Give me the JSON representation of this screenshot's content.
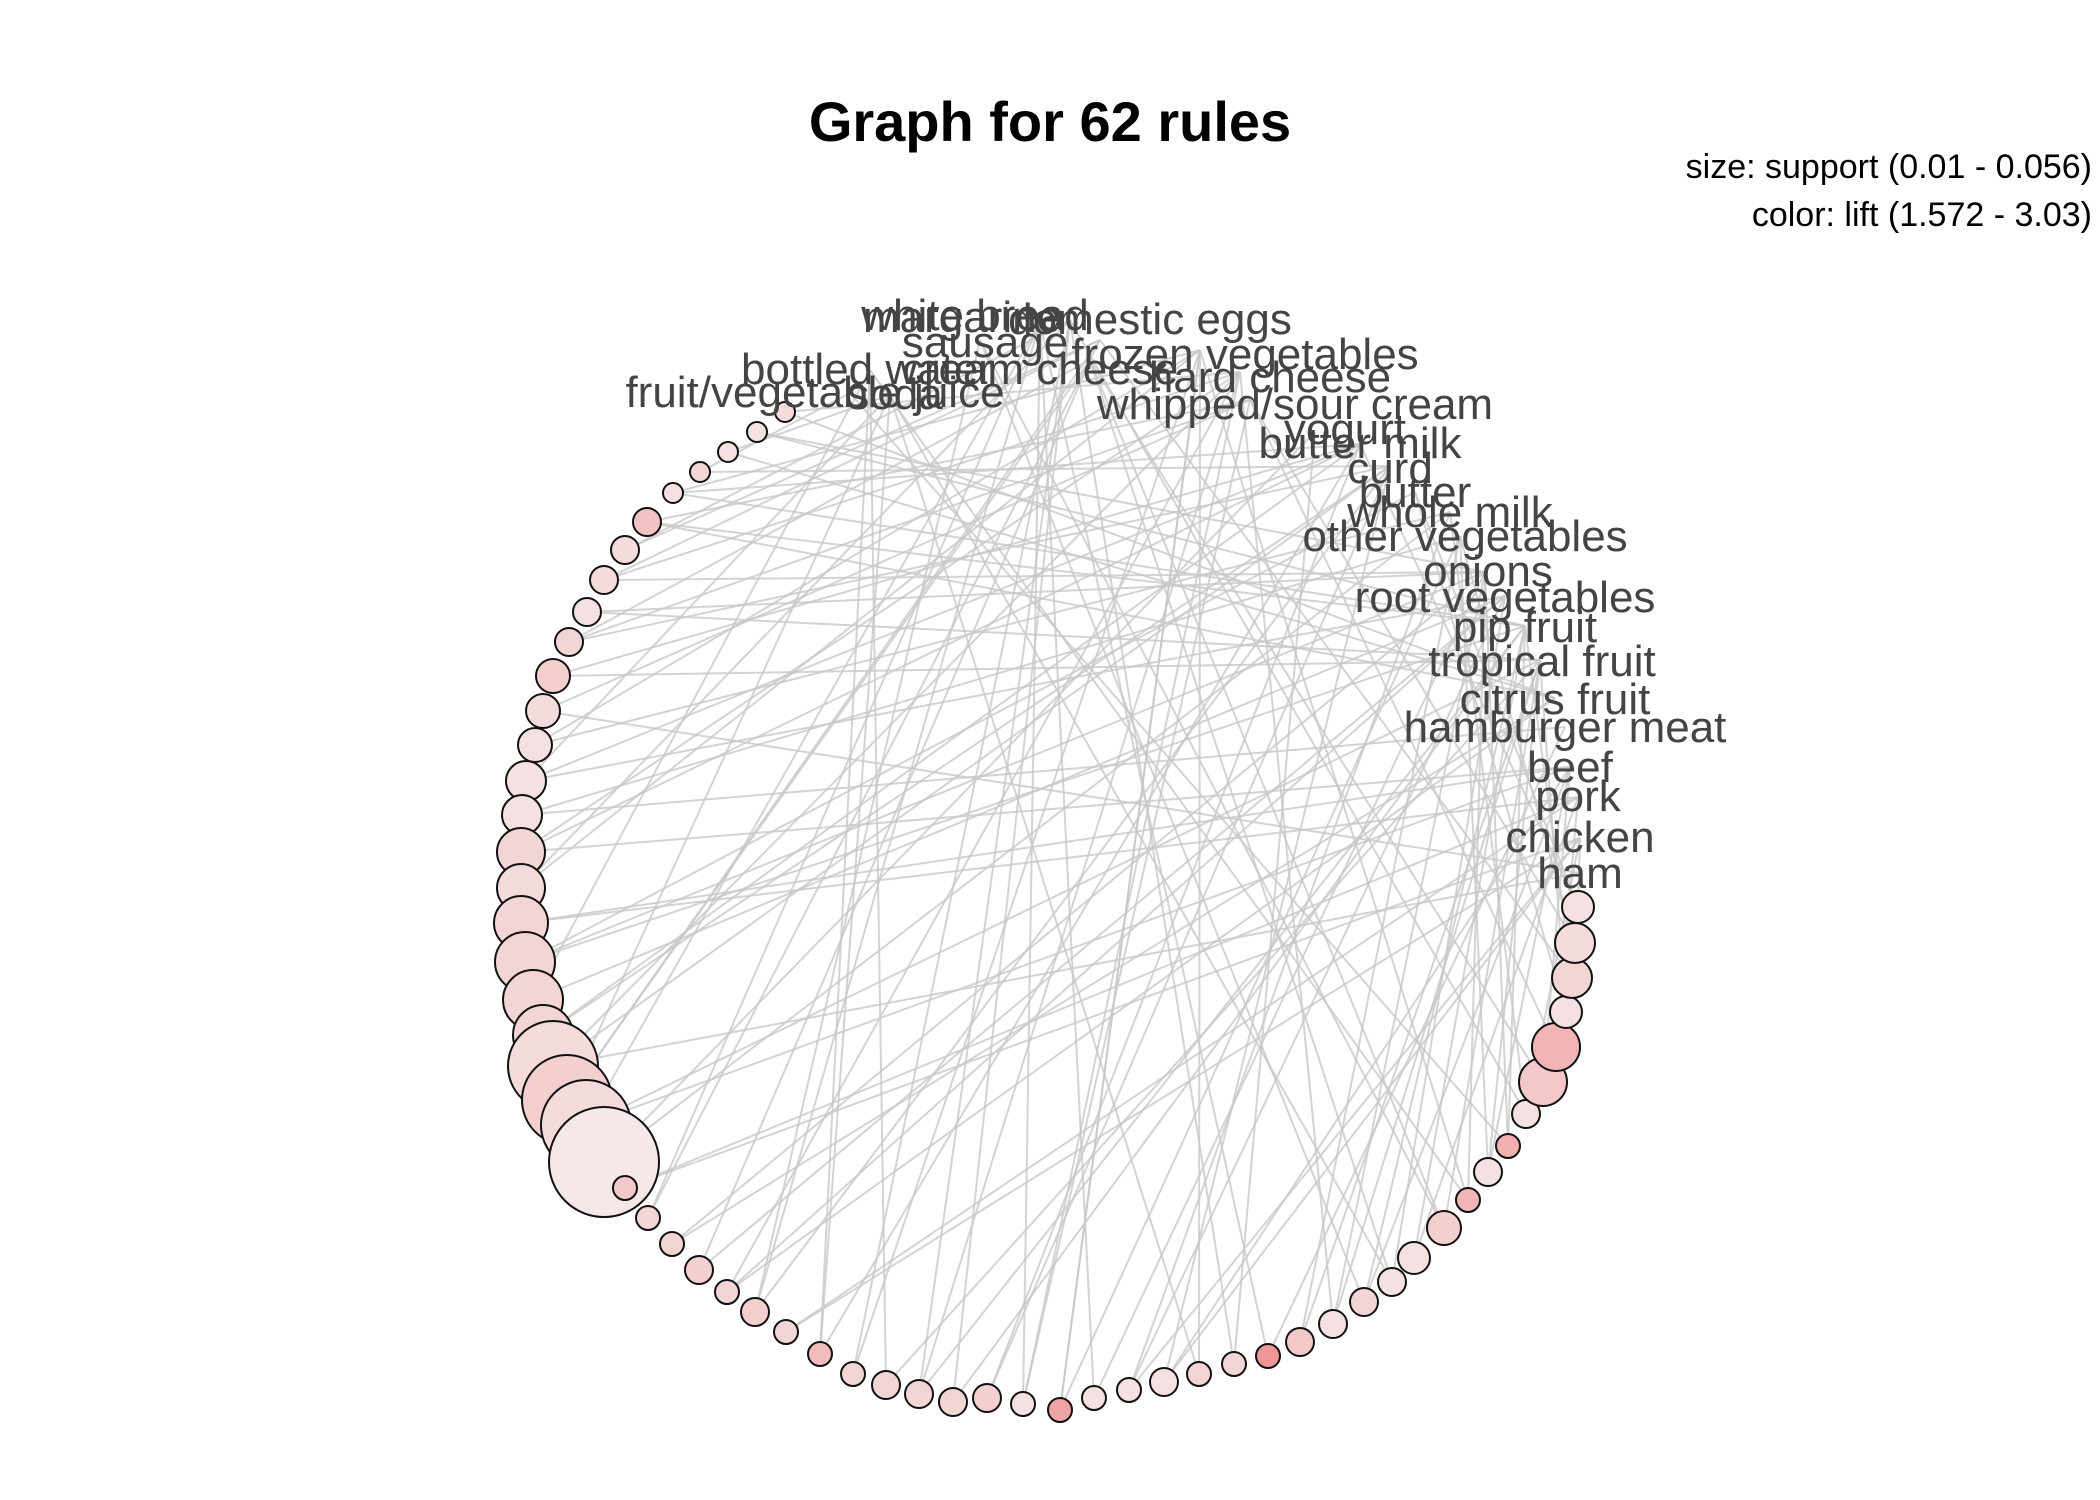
{
  "title": "Graph for 62 rules",
  "legend": {
    "size": "size: support (0.01 - 0.056)",
    "color": "color: lift (1.572 - 3.03)"
  },
  "colors": {
    "edge": "#c8c8c8",
    "label": "#444444",
    "low_lift": "#f6eeee",
    "high_lift": "#ee7070"
  },
  "items": [
    "margarine",
    "white bread",
    "frozen vegetables",
    "hard cheese",
    "whipped/sour cream",
    "yogurt",
    "butter milk",
    "curd",
    "butter",
    "whole milk",
    "other vegetables",
    "onions",
    "root vegetables",
    "pip fruit",
    "tropical fruit",
    "citrus fruit",
    "hamburger meat",
    "beef",
    "pork",
    "chicken",
    "ham",
    "fruit/vegetable juice",
    "bottled water",
    "soda",
    "sausage",
    "domestic eggs",
    "cream cheese"
  ]
}
